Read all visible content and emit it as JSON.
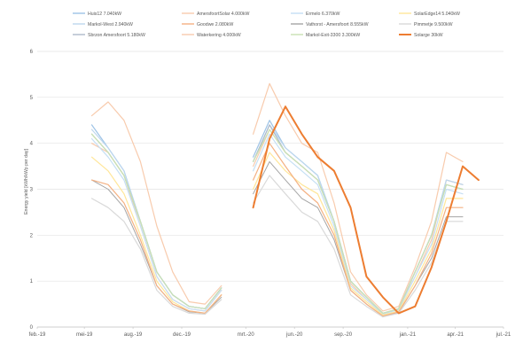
{
  "chart_data": {
    "type": "line",
    "title": "",
    "xlabel": "",
    "ylabel": "Energy yield [kWh/kWp per day]",
    "ylim": [
      0,
      6
    ],
    "yticks": [
      "0",
      "1",
      "2",
      "3",
      "4",
      "5",
      "6"
    ],
    "xlim": [
      "2019-02-01",
      "2021-07-01"
    ],
    "xticks": [
      {
        "date": "2019-02-01",
        "label": "feb.-19"
      },
      {
        "date": "2019-05-01",
        "label": "mei-19"
      },
      {
        "date": "2019-08-01",
        "label": "aug.-19"
      },
      {
        "date": "2019-11-01",
        "label": "dec.-19"
      },
      {
        "date": "2020-03-01",
        "label": "mrt.-20"
      },
      {
        "date": "2020-06-01",
        "label": "jun.-20"
      },
      {
        "date": "2020-09-01",
        "label": "sep.-20"
      },
      {
        "date": "2021-01-01",
        "label": "jan.-21"
      },
      {
        "date": "2021-04-01",
        "label": "apr.-21"
      },
      {
        "date": "2021-07-01",
        "label": "jul.-21"
      }
    ],
    "grid": "horizontal",
    "legend_position": "top",
    "x": [
      "2019-05-15",
      "2019-06-15",
      "2019-07-15",
      "2019-08-15",
      "2019-09-15",
      "2019-10-15",
      "2019-11-15",
      "2019-12-15",
      "2020-01-15",
      "2020-02-15",
      "2020-03-15",
      "2020-04-15",
      "2020-05-15",
      "2020-06-15",
      "2020-07-15",
      "2020-08-15",
      "2020-09-15",
      "2020-10-15",
      "2020-11-15",
      "2020-12-15",
      "2021-01-15",
      "2021-02-15",
      "2021-03-15",
      "2021-04-15",
      "2021-05-15"
    ],
    "series": [
      {
        "name": "Huis12 7.040kW",
        "color": "#9dc3e6",
        "width": 1.2,
        "values": [
          4.4,
          3.9,
          3.4,
          2.3,
          1.2,
          0.7,
          0.45,
          0.4,
          0.85,
          null,
          3.7,
          4.5,
          3.9,
          3.6,
          3.3,
          2.3,
          1.0,
          0.65,
          0.3,
          0.4,
          1.2,
          2.0,
          3.2,
          3.1,
          null
        ]
      },
      {
        "name": "AmersfoortSolar 4.000kW",
        "color": "#f8cbad",
        "width": 1.2,
        "values": [
          4.0,
          3.8,
          3.3,
          2.2,
          1.1,
          0.6,
          0.4,
          0.35,
          0.8,
          null,
          3.5,
          4.3,
          3.8,
          3.5,
          3.2,
          2.3,
          0.95,
          0.6,
          0.3,
          0.4,
          1.1,
          1.9,
          3.2,
          3.1,
          null
        ]
      },
      {
        "name": "Ermelo 6.370kW",
        "color": "#c5dff4",
        "width": 1.2,
        "values": [
          4.1,
          3.7,
          3.2,
          2.2,
          1.1,
          0.6,
          0.4,
          0.35,
          0.8,
          null,
          3.4,
          4.2,
          3.7,
          3.4,
          3.1,
          2.2,
          0.9,
          0.6,
          0.28,
          0.38,
          1.1,
          1.8,
          3.0,
          2.9,
          null
        ]
      },
      {
        "name": "SolarEdge14 5.040kW",
        "color": "#ffe699",
        "width": 1.2,
        "values": [
          3.7,
          3.4,
          2.9,
          2.0,
          1.0,
          0.55,
          0.35,
          0.3,
          0.7,
          null,
          3.0,
          3.8,
          3.4,
          3.1,
          2.9,
          2.1,
          0.85,
          0.55,
          0.26,
          0.35,
          1.0,
          1.7,
          2.8,
          2.8,
          null
        ]
      },
      {
        "name": "Markol-West 2.940kW",
        "color": "#bdd7ee",
        "width": 1.2,
        "values": [
          4.3,
          3.9,
          3.4,
          2.3,
          1.2,
          0.7,
          0.45,
          0.4,
          0.85,
          null,
          3.6,
          4.4,
          3.9,
          3.6,
          3.3,
          2.3,
          1.0,
          0.65,
          0.3,
          0.4,
          1.2,
          2.0,
          3.2,
          3.1,
          null
        ]
      },
      {
        "name": "Goodwe 2.080kW",
        "color": "#f4b183",
        "width": 1.2,
        "values": [
          3.2,
          3.1,
          2.7,
          1.9,
          0.9,
          0.5,
          0.35,
          0.3,
          0.7,
          null,
          3.2,
          4.0,
          3.5,
          3.0,
          2.7,
          2.0,
          0.8,
          0.5,
          0.24,
          0.33,
          0.9,
          1.6,
          2.6,
          2.6,
          null
        ]
      },
      {
        "name": "Vathorst - Amersfoort 8.555kW",
        "color": "#a5a5a5",
        "width": 1.0,
        "values": [
          3.2,
          3.0,
          2.6,
          1.8,
          0.9,
          0.5,
          0.33,
          0.3,
          0.65,
          null,
          2.9,
          3.6,
          3.2,
          2.8,
          2.6,
          1.9,
          0.8,
          0.5,
          0.24,
          0.32,
          0.9,
          1.5,
          2.4,
          2.4,
          null
        ]
      },
      {
        "name": "Pimmetje 9.500kW",
        "color": "#d9d9d9",
        "width": 1.2,
        "values": [
          2.8,
          2.6,
          2.3,
          1.7,
          0.8,
          0.45,
          0.3,
          0.28,
          0.6,
          null,
          2.7,
          3.3,
          2.9,
          2.5,
          2.3,
          1.7,
          0.7,
          0.45,
          0.22,
          0.3,
          0.8,
          1.4,
          2.3,
          2.3,
          null
        ]
      },
      {
        "name": "Sbrzon Amersfoort 5.180kW",
        "color": "#adb9ca",
        "width": 1.2,
        "values": [
          4.2,
          3.8,
          3.3,
          2.3,
          1.2,
          0.7,
          0.45,
          0.4,
          0.85,
          null,
          3.6,
          4.4,
          3.8,
          3.5,
          3.2,
          2.3,
          1.0,
          0.65,
          0.3,
          0.4,
          1.2,
          2.0,
          3.1,
          3.0,
          null
        ]
      },
      {
        "name": "Waterkering 4.000kW",
        "color": "#f8cbad",
        "width": 1.2,
        "values": [
          4.6,
          4.9,
          4.5,
          3.6,
          2.2,
          1.2,
          0.55,
          0.5,
          0.9,
          null,
          4.2,
          5.3,
          4.6,
          4.0,
          3.8,
          2.7,
          1.2,
          0.7,
          0.35,
          0.45,
          1.3,
          2.3,
          3.8,
          3.6,
          null
        ]
      },
      {
        "name": "Markol-Exit-3300 3.300kW",
        "color": "#c9e2b3",
        "width": 1.2,
        "values": [
          4.2,
          3.8,
          3.3,
          2.3,
          1.2,
          0.7,
          0.45,
          0.4,
          0.85,
          null,
          3.6,
          4.3,
          3.8,
          3.5,
          3.2,
          2.3,
          1.0,
          0.65,
          0.3,
          0.4,
          1.2,
          2.0,
          3.1,
          3.0,
          null
        ]
      },
      {
        "name": "Solarge 30kW",
        "color": "#ed7d31",
        "width": 2.0,
        "values": [
          null,
          null,
          null,
          null,
          null,
          null,
          null,
          null,
          null,
          null,
          2.6,
          4.1,
          4.8,
          4.2,
          3.7,
          3.4,
          2.6,
          1.1,
          0.65,
          0.3,
          0.45,
          1.3,
          2.3,
          3.5,
          3.2
        ]
      }
    ]
  }
}
